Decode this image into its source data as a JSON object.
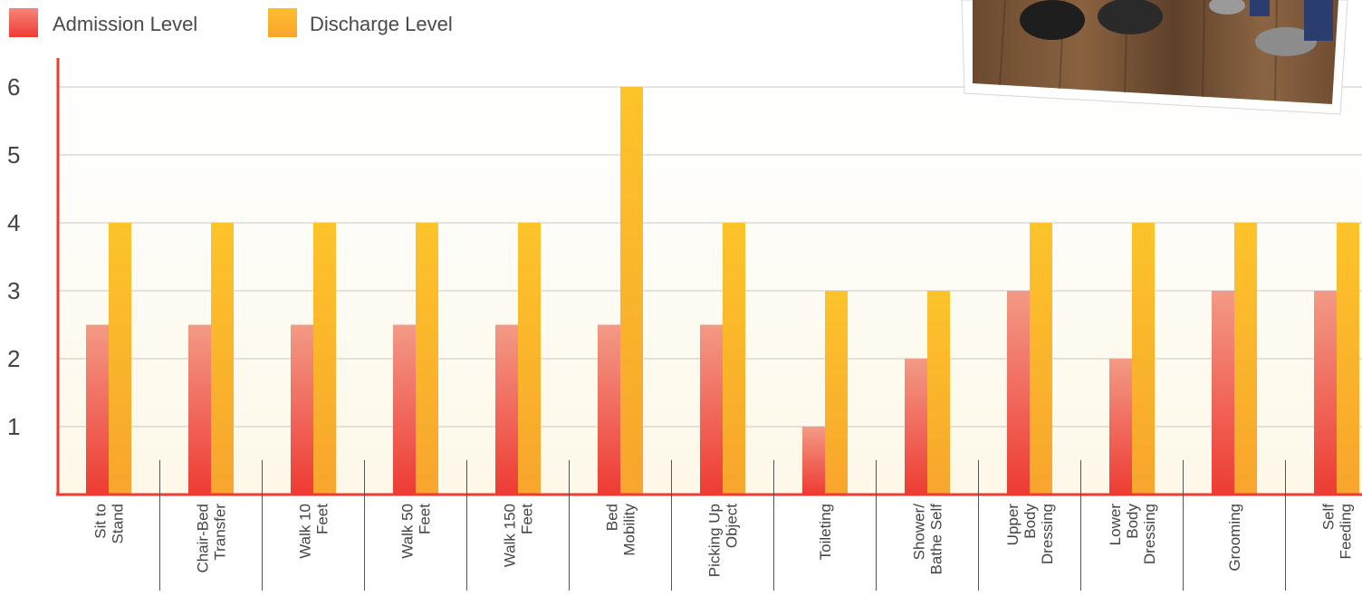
{
  "chart_data": {
    "type": "bar",
    "title": "",
    "xlabel": "",
    "ylabel": "",
    "ylim": [
      0,
      6.65
    ],
    "yticks": [
      1,
      2,
      3,
      4,
      5,
      6
    ],
    "grid": true,
    "legend_position": "top-left",
    "categories": [
      [
        "Sit to",
        "Stand"
      ],
      [
        "Chair-Bed",
        "Transfer"
      ],
      [
        "Walk 10",
        "Feet"
      ],
      [
        "Walk 50",
        "Feet"
      ],
      [
        "Walk 150",
        "Feet"
      ],
      [
        "Bed",
        "Mobility"
      ],
      [
        "Picking Up",
        "Object"
      ],
      [
        "Toileting"
      ],
      [
        "Shower/",
        "Bathe Self"
      ],
      [
        "Upper",
        "Body",
        "Dressing"
      ],
      [
        "Lower",
        "Body",
        "Dressing"
      ],
      [
        "Grooming"
      ],
      [
        "Self",
        "Feeding"
      ]
    ],
    "series": [
      {
        "name": "Admission Level",
        "color_top": "#f39a86",
        "color_bottom": "#ee3b33",
        "values": [
          2.5,
          2.5,
          2.5,
          2.5,
          2.5,
          2.5,
          2.5,
          1,
          2,
          3,
          2,
          3,
          3
        ]
      },
      {
        "name": "Discharge Level",
        "color_top": "#fdc42a",
        "color_bottom": "#f8a52d",
        "values": [
          4,
          4,
          4,
          4,
          4,
          6,
          4,
          3,
          3,
          4,
          4,
          4,
          4
        ]
      }
    ]
  },
  "colors": {
    "axis": "#ee3b33",
    "grid": "#c8c8c8",
    "plot_bg_top": "#ffffff",
    "plot_bg_bottom": "#fdf8e8"
  },
  "photo": {
    "icon": "photo-of-feet-on-wood-floor"
  }
}
